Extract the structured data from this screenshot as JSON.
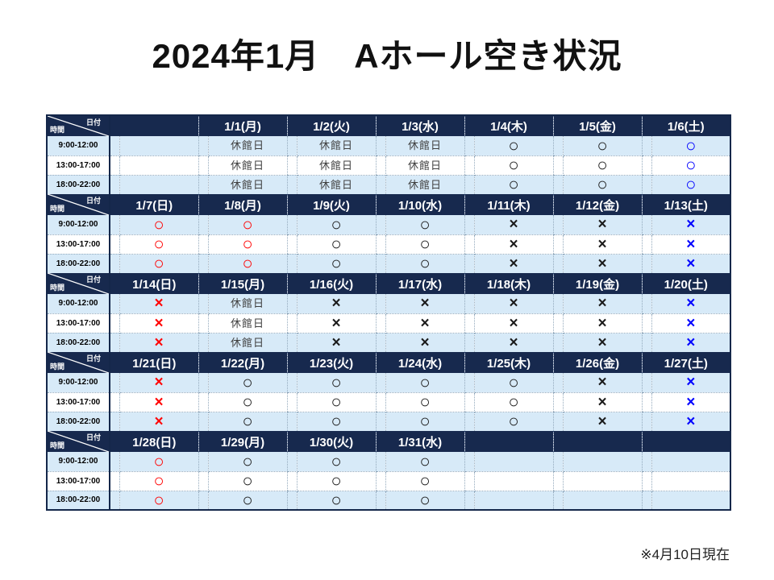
{
  "page": {
    "title": "2024年1月　Aホール空き状況",
    "footnote": "※4月10日現在"
  },
  "colors": {
    "header_bg": "#17294E",
    "row_band_blue": "#D7EAF8",
    "row_band_white": "#FFFFFF",
    "symbol_black": "#1A1A1A",
    "symbol_red": "#FF0000",
    "symbol_blue": "#0000FF",
    "closed_text": "#3F3F3F"
  },
  "table": {
    "corner": {
      "top_right": "日付",
      "bottom_left": "時間"
    },
    "time_slots": [
      "9:00-12:00",
      "13:00-17:00",
      "18:00-22:00"
    ],
    "weeks": [
      {
        "days": [
          {
            "date": "",
            "color": "black",
            "slots": [
              "",
              "",
              ""
            ]
          },
          {
            "date": "1/1(月)",
            "color": "black",
            "slots": [
              "休館日",
              "休館日",
              "休館日"
            ]
          },
          {
            "date": "1/2(火)",
            "color": "black",
            "slots": [
              "休館日",
              "休館日",
              "休館日"
            ]
          },
          {
            "date": "1/3(水)",
            "color": "black",
            "slots": [
              "休館日",
              "休館日",
              "休館日"
            ]
          },
          {
            "date": "1/4(木)",
            "color": "black",
            "slots": [
              "○",
              "○",
              "○"
            ]
          },
          {
            "date": "1/5(金)",
            "color": "black",
            "slots": [
              "○",
              "○",
              "○"
            ]
          },
          {
            "date": "1/6(土)",
            "color": "blue",
            "slots": [
              "○",
              "○",
              "○"
            ]
          }
        ]
      },
      {
        "days": [
          {
            "date": "1/7(日)",
            "color": "red",
            "slots": [
              "○",
              "○",
              "○"
            ]
          },
          {
            "date": "1/8(月)",
            "color": "red",
            "slots": [
              "○",
              "○",
              "○"
            ]
          },
          {
            "date": "1/9(火)",
            "color": "black",
            "slots": [
              "○",
              "○",
              "○"
            ]
          },
          {
            "date": "1/10(水)",
            "color": "black",
            "slots": [
              "○",
              "○",
              "○"
            ]
          },
          {
            "date": "1/11(木)",
            "color": "black",
            "slots": [
              "×",
              "×",
              "×"
            ]
          },
          {
            "date": "1/12(金)",
            "color": "black",
            "slots": [
              "×",
              "×",
              "×"
            ]
          },
          {
            "date": "1/13(土)",
            "color": "blue",
            "slots": [
              "×",
              "×",
              "×"
            ]
          }
        ]
      },
      {
        "days": [
          {
            "date": "1/14(日)",
            "color": "red",
            "slots": [
              "×",
              "×",
              "×"
            ]
          },
          {
            "date": "1/15(月)",
            "color": "black",
            "slots": [
              "休館日",
              "休館日",
              "休館日"
            ]
          },
          {
            "date": "1/16(火)",
            "color": "black",
            "slots": [
              "×",
              "×",
              "×"
            ]
          },
          {
            "date": "1/17(水)",
            "color": "black",
            "slots": [
              "×",
              "×",
              "×"
            ]
          },
          {
            "date": "1/18(木)",
            "color": "black",
            "slots": [
              "×",
              "×",
              "×"
            ]
          },
          {
            "date": "1/19(金)",
            "color": "black",
            "slots": [
              "×",
              "×",
              "×"
            ]
          },
          {
            "date": "1/20(土)",
            "color": "blue",
            "slots": [
              "×",
              "×",
              "×"
            ]
          }
        ]
      },
      {
        "days": [
          {
            "date": "1/21(日)",
            "color": "red",
            "slots": [
              "×",
              "×",
              "×"
            ]
          },
          {
            "date": "1/22(月)",
            "color": "black",
            "slots": [
              "○",
              "○",
              "○"
            ]
          },
          {
            "date": "1/23(火)",
            "color": "black",
            "slots": [
              "○",
              "○",
              "○"
            ]
          },
          {
            "date": "1/24(水)",
            "color": "black",
            "slots": [
              "○",
              "○",
              "○"
            ]
          },
          {
            "date": "1/25(木)",
            "color": "black",
            "slots": [
              "○",
              "○",
              "○"
            ]
          },
          {
            "date": "1/26(金)",
            "color": "black",
            "slots": [
              "×",
              "×",
              "×"
            ]
          },
          {
            "date": "1/27(土)",
            "color": "blue",
            "slots": [
              "×",
              "×",
              "×"
            ]
          }
        ]
      },
      {
        "days": [
          {
            "date": "1/28(日)",
            "color": "red",
            "slots": [
              "○",
              "○",
              "○"
            ]
          },
          {
            "date": "1/29(月)",
            "color": "black",
            "slots": [
              "○",
              "○",
              "○"
            ]
          },
          {
            "date": "1/30(火)",
            "color": "black",
            "slots": [
              "○",
              "○",
              "○"
            ]
          },
          {
            "date": "1/31(水)",
            "color": "black",
            "slots": [
              "○",
              "○",
              "○"
            ]
          },
          {
            "date": "",
            "color": "black",
            "slots": [
              "",
              "",
              ""
            ]
          },
          {
            "date": "",
            "color": "black",
            "slots": [
              "",
              "",
              ""
            ]
          },
          {
            "date": "",
            "color": "black",
            "slots": [
              "",
              "",
              ""
            ]
          }
        ]
      }
    ]
  }
}
